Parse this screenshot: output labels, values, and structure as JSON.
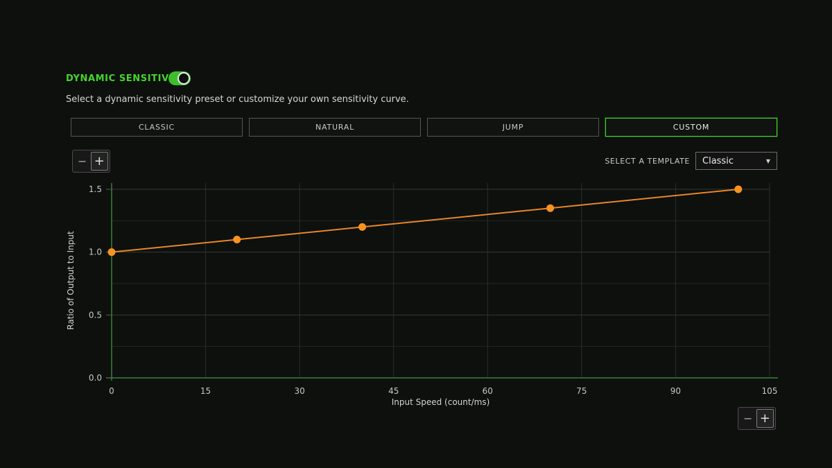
{
  "page": {
    "background": "#0d100d",
    "accent_green": "#44d62c"
  },
  "header": {
    "title": "DYNAMIC SENSITIVITY",
    "toggle_state": "on",
    "subtitle": "Select a dynamic sensitivity preset or customize your own sensitivity curve."
  },
  "presets": {
    "items": [
      {
        "label": "CLASSIC",
        "selected": false
      },
      {
        "label": "NATURAL",
        "selected": false
      },
      {
        "label": "JUMP",
        "selected": false
      },
      {
        "label": "CUSTOM",
        "selected": true
      }
    ]
  },
  "template_selector": {
    "label": "SELECT A TEMPLATE",
    "value": "Classic"
  },
  "zoom_controls": {
    "minus_label": "−",
    "plus_label": "+"
  },
  "chart_data": {
    "type": "line",
    "title": "",
    "xlabel": "Input Speed (count/ms)",
    "ylabel": "Ratio of Output to Input",
    "x": [
      0,
      20,
      40,
      70,
      100
    ],
    "y": [
      1.0,
      1.1,
      1.2,
      1.35,
      1.5
    ],
    "xlim": [
      0,
      105
    ],
    "ylim": [
      0,
      1.5
    ],
    "x_ticks": [
      0,
      15,
      30,
      45,
      60,
      75,
      90,
      105
    ],
    "y_ticks": [
      0.0,
      0.5,
      1.0,
      1.5
    ],
    "y_minor_step": 0.25,
    "grid": true,
    "legend": "none",
    "line_color": "#e8862a",
    "point_color": "#f79321",
    "axis_color": "#3e7d3e"
  }
}
